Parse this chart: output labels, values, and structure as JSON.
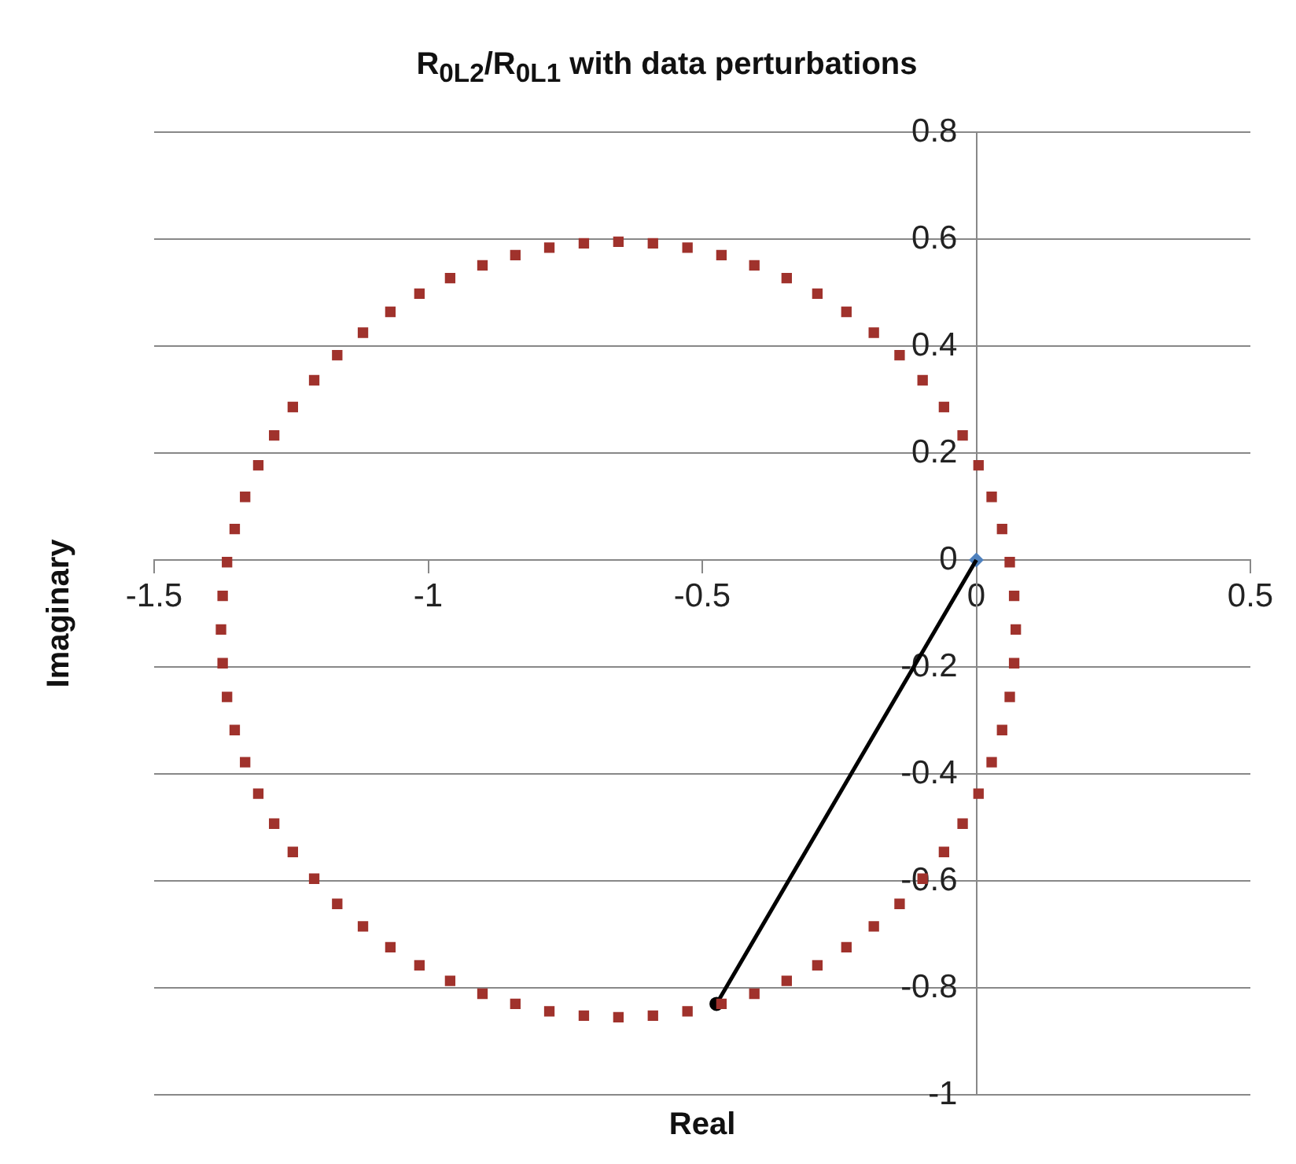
{
  "chart_data": {
    "type": "scatter",
    "title": "R$_{0L2}$/R$_{0L1}$ with data perturbations",
    "xlabel": "Real",
    "ylabel": "Imaginary",
    "xlim": [
      -1.5,
      0.5
    ],
    "xticks": [
      -1.5,
      -1,
      -0.5,
      0,
      0.5
    ],
    "ylim": [
      -1,
      0.8
    ],
    "yticks": [
      -1,
      -0.8,
      -0.6,
      -0.4,
      -0.2,
      0,
      0.2,
      0.4,
      0.6,
      0.8
    ],
    "grid": "y",
    "legend": false,
    "series": [
      {
        "color": "#a0322c",
        "marker": "square",
        "x": [
          0.072,
          0.069,
          0.061,
          0.047,
          0.028,
          0.004,
          -0.025,
          -0.059,
          -0.098,
          -0.14,
          -0.187,
          -0.237,
          -0.29,
          -0.346,
          -0.405,
          -0.465,
          -0.527,
          -0.59,
          -0.653,
          -0.716,
          -0.779,
          -0.841,
          -0.901,
          -0.96,
          -1.016,
          -1.069,
          -1.119,
          -1.166,
          -1.208,
          -1.247,
          -1.281,
          -1.31,
          -1.334,
          -1.353,
          -1.367,
          -1.375,
          -1.378,
          -1.375,
          -1.367,
          -1.353,
          -1.334,
          -1.31,
          -1.281,
          -1.247,
          -1.208,
          -1.166,
          -1.119,
          -1.069,
          -1.016,
          -0.96,
          -0.901,
          -0.841,
          -0.779,
          -0.716,
          -0.653,
          -0.59,
          -0.527,
          -0.465,
          -0.405,
          -0.346,
          -0.29,
          -0.237,
          -0.187,
          -0.14,
          -0.098,
          -0.059,
          -0.025,
          0.004,
          0.028,
          0.047,
          0.061,
          0.069
        ],
        "values": [
          -0.13,
          -0.067,
          -0.004,
          0.058,
          0.118,
          0.177,
          0.233,
          0.286,
          0.336,
          0.383,
          0.425,
          0.464,
          0.498,
          0.527,
          0.551,
          0.57,
          0.584,
          0.592,
          0.595,
          0.592,
          0.584,
          0.57,
          0.551,
          0.527,
          0.498,
          0.464,
          0.425,
          0.383,
          0.336,
          0.286,
          0.233,
          0.177,
          0.118,
          0.058,
          -0.004,
          -0.067,
          -0.13,
          -0.193,
          -0.256,
          -0.318,
          -0.378,
          -0.437,
          -0.493,
          -0.546,
          -0.596,
          -0.643,
          -0.685,
          -0.724,
          -0.758,
          -0.787,
          -0.811,
          -0.83,
          -0.844,
          -0.852,
          -0.855,
          -0.852,
          -0.844,
          -0.83,
          -0.811,
          -0.787,
          -0.758,
          -0.724,
          -0.685,
          -0.643,
          -0.596,
          -0.546,
          -0.493,
          -0.437,
          -0.378,
          -0.318,
          -0.256,
          -0.193
        ]
      },
      {
        "type": "line",
        "color": "#000000",
        "marker": "none",
        "x": [
          0,
          -0.474
        ],
        "values": [
          0,
          -0.83
        ]
      },
      {
        "color": "#4f81bd",
        "marker": "diamond",
        "x": [
          0
        ],
        "values": [
          0
        ]
      },
      {
        "color": "#000000",
        "marker": "circle",
        "x": [
          -0.474
        ],
        "values": [
          -0.83
        ]
      }
    ]
  }
}
